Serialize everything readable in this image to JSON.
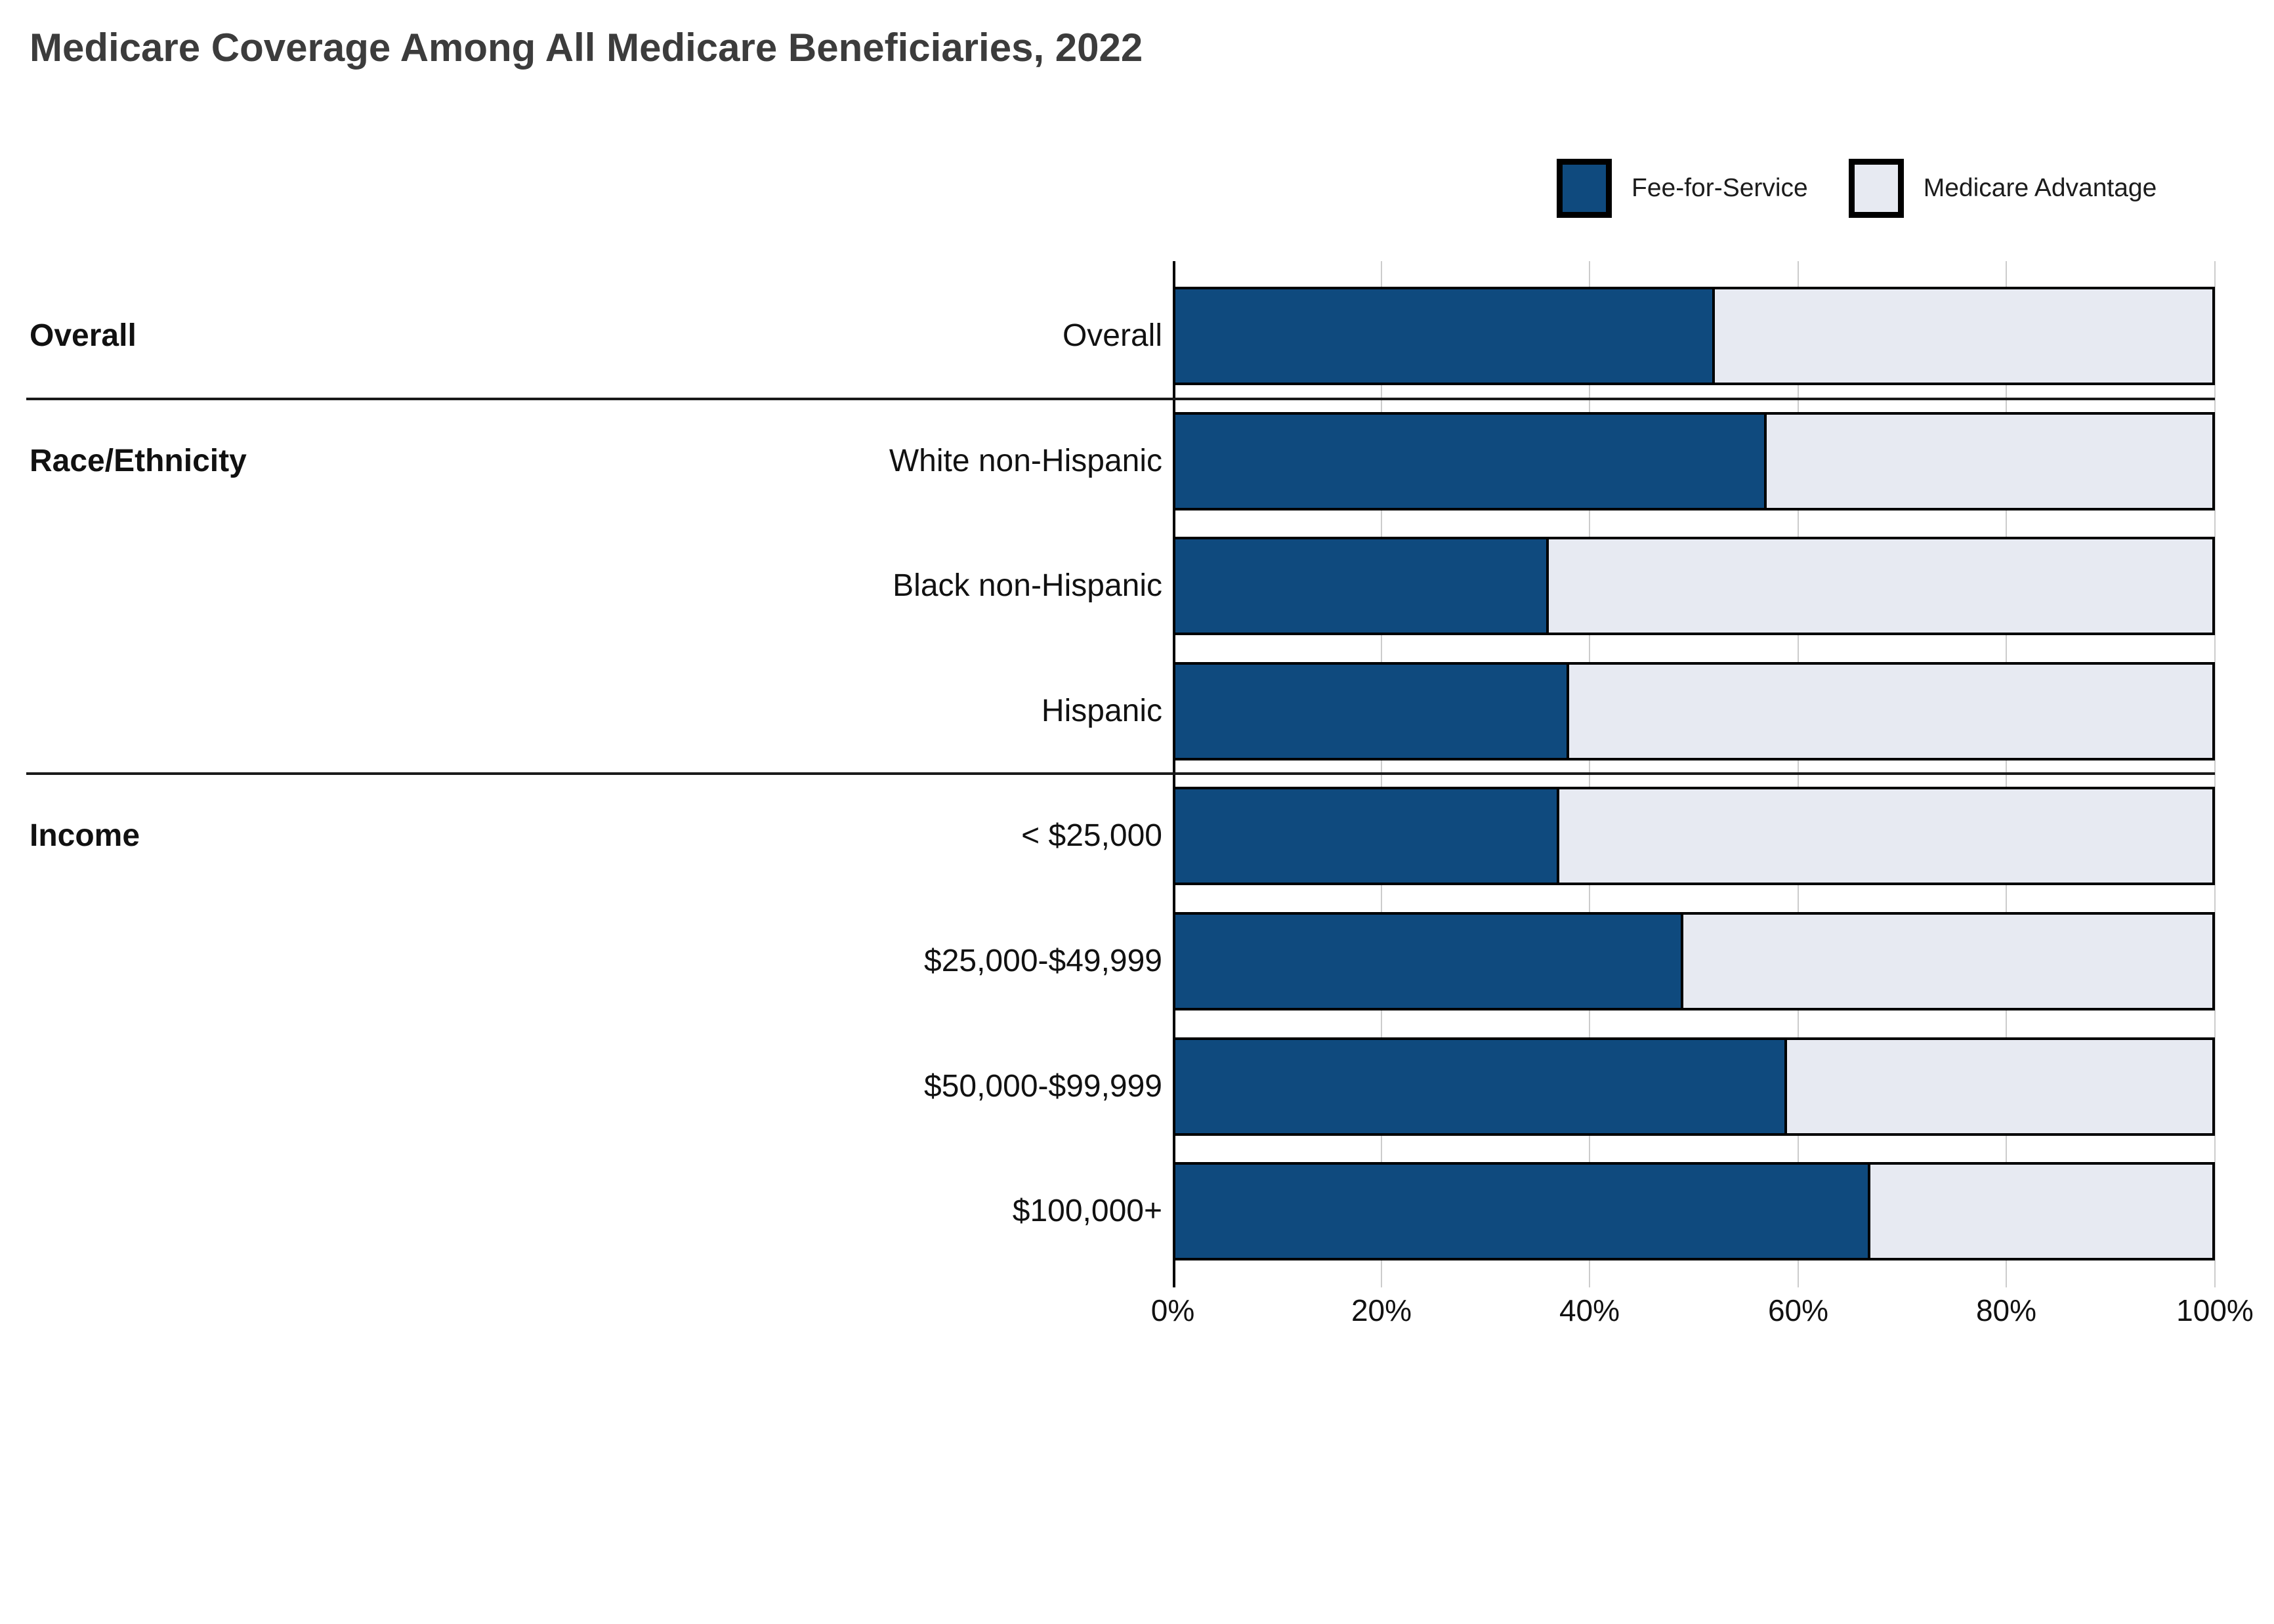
{
  "title": "Medicare Coverage Among All Medicare Beneficiaries, 2022",
  "legend": {
    "items": [
      {
        "label": "Fee-for-Service",
        "color": "#0F4A7E"
      },
      {
        "label": "Medicare Advantage",
        "color": "#E7EAF2"
      }
    ]
  },
  "colors": {
    "fee_for_service": "#0F4A7E",
    "medicare_advantage": "#E7EAF2",
    "bar_border": "#000000",
    "gridline": "#CCCCCC",
    "separator": "#1A1A1A",
    "title_text": "#3C3C3C",
    "label_text": "#111111"
  },
  "chart_data": {
    "type": "bar",
    "orientation": "horizontal",
    "stacked": true,
    "title": "Medicare Coverage Among All Medicare Beneficiaries, 2022",
    "xlabel": "",
    "ylabel": "",
    "xlim": [
      0,
      100
    ],
    "x_ticks": [
      "0%",
      "20%",
      "40%",
      "60%",
      "80%",
      "100%"
    ],
    "grid": true,
    "legend_position": "top-right",
    "categories": [
      "Overall",
      "White non-Hispanic",
      "Black non-Hispanic",
      "Hispanic",
      "< $25,000",
      "$25,000-$49,999",
      "$50,000-$99,999",
      "$100,000+"
    ],
    "groups": [
      {
        "label": "Overall",
        "start_row": 0,
        "row_count": 1
      },
      {
        "label": "Race/Ethnicity",
        "start_row": 1,
        "row_count": 3
      },
      {
        "label": "Income",
        "start_row": 4,
        "row_count": 4
      }
    ],
    "series": [
      {
        "name": "Fee-for-Service",
        "color": "#0F4A7E",
        "values": [
          52,
          57,
          36,
          38,
          37,
          49,
          59,
          67
        ]
      },
      {
        "name": "Medicare Advantage",
        "color": "#E7EAF2",
        "values": [
          48,
          43,
          64,
          62,
          63,
          51,
          41,
          33
        ]
      }
    ]
  }
}
